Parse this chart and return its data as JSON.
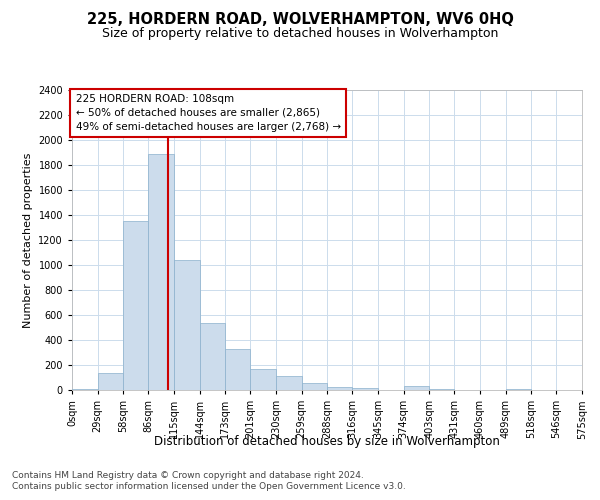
{
  "title": "225, HORDERN ROAD, WOLVERHAMPTON, WV6 0HQ",
  "subtitle": "Size of property relative to detached houses in Wolverhampton",
  "xlabel": "Distribution of detached houses by size in Wolverhampton",
  "ylabel": "Number of detached properties",
  "bar_vals": [
    10,
    140,
    1350,
    1890,
    1040,
    540,
    330,
    165,
    110,
    60,
    25,
    15,
    0,
    30,
    5,
    0,
    0,
    5,
    0,
    0
  ],
  "bin_edges": [
    0,
    29,
    58,
    86,
    115,
    144,
    173,
    201,
    230,
    259,
    288,
    316,
    345,
    374,
    403,
    431,
    460,
    489,
    518,
    546,
    575
  ],
  "bar_labels": [
    "0sqm",
    "29sqm",
    "58sqm",
    "86sqm",
    "115sqm",
    "144sqm",
    "173sqm",
    "201sqm",
    "230sqm",
    "259sqm",
    "288sqm",
    "316sqm",
    "345sqm",
    "374sqm",
    "403sqm",
    "431sqm",
    "460sqm",
    "489sqm",
    "518sqm",
    "546sqm",
    "575sqm"
  ],
  "bar_color": "#ccdcec",
  "bar_edge_color": "#8ab0cc",
  "vline_x": 108,
  "vline_color": "#cc0000",
  "annotation_text": "225 HORDERN ROAD: 108sqm\n← 50% of detached houses are smaller (2,865)\n49% of semi-detached houses are larger (2,768) →",
  "annotation_box_color": "#ffffff",
  "annotation_box_edge_color": "#cc0000",
  "ylim": [
    0,
    2400
  ],
  "yticks": [
    0,
    200,
    400,
    600,
    800,
    1000,
    1200,
    1400,
    1600,
    1800,
    2000,
    2200,
    2400
  ],
  "footer1": "Contains HM Land Registry data © Crown copyright and database right 2024.",
  "footer2": "Contains public sector information licensed under the Open Government Licence v3.0.",
  "background_color": "#ffffff",
  "grid_color": "#ccdcec",
  "title_fontsize": 10.5,
  "subtitle_fontsize": 9,
  "xlabel_fontsize": 8.5,
  "ylabel_fontsize": 8,
  "tick_fontsize": 7,
  "annotation_fontsize": 7.5,
  "footer_fontsize": 6.5
}
